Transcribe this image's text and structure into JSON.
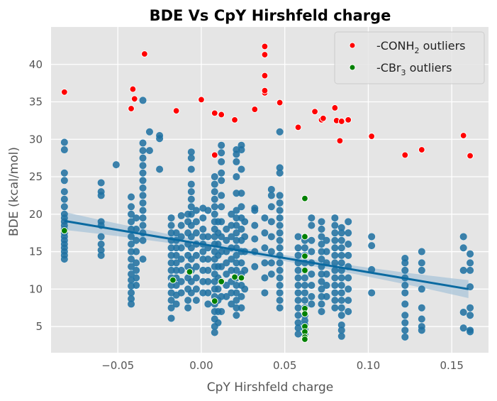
{
  "chart_data": {
    "type": "scatter",
    "title": "BDE Vs CpY Hirshfeld charge",
    "xlabel": "CpY Hirshfeld charge",
    "ylabel": "BDE (kcal/mol)",
    "xlim": [
      -0.09,
      0.172
    ],
    "ylim": [
      1.5,
      45
    ],
    "xticks": [
      -0.05,
      0.0,
      0.05,
      0.1,
      0.15
    ],
    "xtick_labels": [
      "−0.05",
      "0.00",
      "0.05",
      "0.10",
      "0.15"
    ],
    "yticks": [
      5,
      10,
      15,
      20,
      25,
      30,
      35,
      40
    ],
    "ytick_labels": [
      "5",
      "10",
      "15",
      "20",
      "25",
      "30",
      "35",
      "40"
    ],
    "grid": true,
    "legend_position": "top-right",
    "colors": {
      "main": "#1f6f9f",
      "conh2": "#ff0000",
      "cbr3": "#008000",
      "regression": "#0a6aa1",
      "band": "#a9c4d8",
      "background": "#e5e5e5"
    },
    "regression": {
      "x": [
        -0.082,
        0.16
      ],
      "y": [
        19.1,
        10.0
      ],
      "ci_halfwidth": {
        "ends": 1.2,
        "center": 0.4
      }
    },
    "series": [
      {
        "name": "",
        "columns": [
          {
            "x": -0.082,
            "y": [
              14.0,
              14.5,
              15.0,
              15.5,
              16.0,
              16.5,
              17.0,
              17.5,
              18.0,
              18.5,
              19.0,
              19.5,
              20.0,
              21.0,
              22.0,
              23.0,
              24.5,
              25.5,
              28.6,
              29.6
            ]
          },
          {
            "x": -0.06,
            "y": [
              14.5,
              15.2,
              16.0,
              17.0,
              18.5,
              19.0,
              22.5,
              23.0,
              24.2
            ]
          },
          {
            "x": -0.051,
            "y": [
              26.6
            ]
          },
          {
            "x": -0.042,
            "y": [
              8.0,
              8.7,
              9.5,
              10.4,
              11.2,
              12.0,
              13.0,
              14.0,
              15.0,
              16.0,
              17.0,
              18.0,
              19.0,
              20.0,
              21.0,
              22.3
            ]
          },
          {
            "x": -0.039,
            "y": [
              10.5,
              11.5,
              12.5,
              13.5,
              15.0,
              16.5,
              18.0,
              19.5
            ]
          },
          {
            "x": -0.035,
            "y": [
              14.0,
              16.5,
              17.5,
              18.5,
              19.5,
              20.5,
              21.5,
              22.5,
              23.5,
              24.5,
              25.5,
              26.5,
              27.5,
              28.5,
              29.5,
              35.2
            ]
          },
          {
            "x": -0.031,
            "y": [
              28.5,
              31.0
            ]
          },
          {
            "x": -0.025,
            "y": [
              26.0,
              30.1,
              30.5
            ]
          },
          {
            "x": -0.018,
            "y": [
              6.1,
              7.5,
              8.5,
              9.5,
              10.5,
              11.5,
              12.5,
              13.5,
              14.5,
              15.5,
              16.5,
              17.5,
              18.5,
              19.5
            ]
          },
          {
            "x": -0.015,
            "y": [
              8.0,
              9.2,
              10.5,
              11.5,
              12.5,
              13.5,
              14.5,
              15.5,
              16.5,
              17.5
            ]
          },
          {
            "x": -0.012,
            "y": [
              9.5,
              11.0,
              12.5,
              14.0,
              15.5,
              17.0,
              18.5,
              19.8
            ]
          },
          {
            "x": -0.008,
            "y": [
              7.5,
              8.5,
              10.0,
              11.5,
              13.0,
              14.5,
              16.0,
              17.5,
              19.0,
              20.0
            ]
          },
          {
            "x": -0.006,
            "y": [
              9.5,
              11.0,
              12.5,
              14.0,
              15.5,
              17.0,
              18.5,
              20.0,
              21.0,
              22.0,
              23.0,
              24.0,
              26.0,
              27.5,
              28.3
            ]
          },
          {
            "x": -0.003,
            "y": [
              8.5,
              10.0,
              11.5,
              13.0,
              14.5,
              16.0,
              17.5,
              19.0,
              20.5
            ]
          },
          {
            "x": 0.001,
            "y": [
              9.5,
              11.0,
              12.5,
              14.0,
              15.0,
              16.0,
              17.0,
              18.0,
              19.5,
              20.8
            ]
          },
          {
            "x": 0.004,
            "y": [
              8.0,
              9.5,
              11.0,
              12.5,
              14.0,
              15.5,
              17.0,
              20.5
            ]
          },
          {
            "x": 0.008,
            "y": [
              4.2,
              5.0,
              6.0,
              7.0,
              8.0,
              9.0,
              10.0,
              11.0,
              12.0,
              13.0,
              14.0,
              15.0,
              16.0,
              17.0,
              18.0,
              19.0,
              20.0,
              21.0,
              22.0,
              23.0,
              24.0,
              25.0
            ]
          },
          {
            "x": 0.01,
            "y": [
              5.5,
              7.0,
              8.5,
              10.0,
              11.5,
              13.0,
              14.5,
              16.0,
              17.5,
              19.0
            ]
          },
          {
            "x": 0.012,
            "y": [
              7.0,
              9.0,
              11.0,
              13.0,
              15.0,
              17.0,
              19.0,
              21.0,
              22.5,
              24.5,
              25.5,
              27.0,
              28.2,
              29.2
            ]
          },
          {
            "x": 0.015,
            "y": [
              9.0,
              10.5,
              12.0,
              13.5,
              15.0,
              16.5,
              18.0
            ]
          },
          {
            "x": 0.018,
            "y": [
              8.0,
              9.5,
              11.0,
              12.5,
              14.0,
              15.5,
              17.0,
              18.5,
              20.0
            ]
          },
          {
            "x": 0.021,
            "y": [
              6.5,
              7.5,
              8.5,
              9.5,
              10.5,
              11.5,
              12.5,
              13.5,
              14.5,
              15.5,
              16.5,
              17.5,
              18.5,
              19.5,
              20.5,
              22.8,
              25.0,
              27.0,
              28.0,
              28.6
            ]
          },
          {
            "x": 0.024,
            "y": [
              7.5,
              9.0,
              10.5,
              12.0,
              13.5,
              15.0,
              16.5,
              18.0,
              19.5,
              21.0,
              22.8,
              26.0,
              28.6,
              29.2
            ]
          },
          {
            "x": 0.026,
            "y": [
              10.0,
              12.5,
              15.0,
              17.0,
              19.0
            ]
          },
          {
            "x": 0.032,
            "y": [
              13.0,
              15.0,
              16.7,
              18.5,
              20.5,
              20.8
            ]
          },
          {
            "x": 0.038,
            "y": [
              9.5,
              11.5,
              13.5,
              15.5,
              17.5,
              19.5
            ]
          },
          {
            "x": 0.042,
            "y": [
              12.0,
              13.5,
              15.0,
              17.0,
              19.0,
              21.0,
              22.5,
              23.3
            ]
          },
          {
            "x": 0.047,
            "y": [
              7.5,
              8.5,
              9.5,
              10.5,
              11.5,
              12.5,
              13.5,
              14.5,
              15.5,
              16.5,
              17.5,
              18.5,
              19.5,
              20.5,
              21.5,
              22.5,
              25.5,
              26.2,
              31.0
            ]
          },
          {
            "x": 0.058,
            "y": [
              4.0,
              4.8,
              5.5,
              6.5,
              7.5,
              8.5,
              9.5,
              10.5,
              11.5,
              12.5,
              13.5,
              14.5,
              15.5,
              17.0
            ]
          },
          {
            "x": 0.062,
            "y": [
              4.0,
              4.6,
              5.2,
              5.8,
              6.5,
              7.5,
              8.5,
              9.5,
              10.5,
              11.5,
              12.5,
              13.5,
              14.5,
              15.5,
              16.5
            ]
          },
          {
            "x": 0.066,
            "y": [
              8.0,
              9.0,
              10.5,
              12.0,
              13.5,
              15.0,
              16.5,
              18.5,
              19.5
            ]
          },
          {
            "x": 0.072,
            "y": [
              7.0,
              8.0,
              9.0,
              10.0,
              11.0,
              12.0,
              13.0,
              14.0,
              15.0,
              16.0,
              17.0,
              18.0,
              19.0
            ]
          },
          {
            "x": 0.075,
            "y": [
              9.0,
              10.5,
              12.0,
              13.5,
              15.0,
              16.5
            ]
          },
          {
            "x": 0.08,
            "y": [
              7.5,
              8.5,
              9.5,
              10.5,
              11.5,
              12.5,
              13.5,
              14.5,
              15.5,
              16.5,
              17.5,
              18.5,
              19.5
            ]
          },
          {
            "x": 0.084,
            "y": [
              3.7,
              4.5,
              5.2,
              6.5,
              7.5,
              8.5,
              9.5,
              10.5,
              11.5,
              12.5,
              13.5,
              14.5,
              15.5,
              16.5,
              17.5,
              18.2
            ]
          },
          {
            "x": 0.088,
            "y": [
              7.0,
              8.5,
              10.0,
              11.5,
              13.0,
              14.5,
              16.0,
              17.5,
              19.0
            ]
          },
          {
            "x": 0.102,
            "y": [
              9.5,
              12.6,
              15.8,
              17.0
            ]
          },
          {
            "x": 0.122,
            "y": [
              3.6,
              4.5,
              5.5,
              6.5,
              8.0,
              9.5,
              10.5,
              11.5,
              12.5,
              13.5,
              14.1
            ]
          },
          {
            "x": 0.132,
            "y": [
              4.5,
              5.0,
              6.0,
              7.5,
              10.0,
              12.5,
              13.5,
              15.0
            ]
          },
          {
            "x": 0.157,
            "y": [
              4.8,
              6.9,
              12.5,
              15.5,
              17.0
            ]
          },
          {
            "x": 0.161,
            "y": [
              4.3,
              4.5,
              6.5,
              7.5,
              10.3,
              12.5,
              13.5,
              14.7
            ]
          }
        ]
      },
      {
        "name": "-CONH<sub>2</sub> outliers",
        "legend_main": "-CONH",
        "legend_sub": "2",
        "legend_rest": " outliers",
        "color": "#ff0000",
        "points": [
          [
            -0.082,
            36.3
          ],
          [
            -0.042,
            34.1
          ],
          [
            -0.041,
            36.7
          ],
          [
            -0.04,
            35.4
          ],
          [
            -0.034,
            41.4
          ],
          [
            -0.015,
            33.8
          ],
          [
            0.0,
            35.3
          ],
          [
            0.008,
            27.9
          ],
          [
            0.008,
            33.5
          ],
          [
            0.012,
            33.3
          ],
          [
            0.02,
            32.6
          ],
          [
            0.032,
            34.0
          ],
          [
            0.038,
            36.2
          ],
          [
            0.038,
            36.5
          ],
          [
            0.038,
            38.5
          ],
          [
            0.038,
            41.3
          ],
          [
            0.038,
            42.4
          ],
          [
            0.047,
            34.9
          ],
          [
            0.058,
            31.6
          ],
          [
            0.068,
            33.7
          ],
          [
            0.072,
            32.6
          ],
          [
            0.073,
            32.8
          ],
          [
            0.08,
            34.2
          ],
          [
            0.081,
            32.5
          ],
          [
            0.083,
            29.8
          ],
          [
            0.084,
            32.4
          ],
          [
            0.088,
            32.6
          ],
          [
            0.102,
            30.4
          ],
          [
            0.122,
            27.9
          ],
          [
            0.132,
            28.6
          ],
          [
            0.157,
            30.5
          ],
          [
            0.161,
            27.8
          ]
        ]
      },
      {
        "name": "-CBr<sub>3</sub> outliers",
        "legend_main": "-CBr",
        "legend_sub": "3",
        "legend_rest": " outliers",
        "color": "#008000",
        "points": [
          [
            -0.082,
            17.8
          ],
          [
            -0.017,
            11.2
          ],
          [
            -0.007,
            12.3
          ],
          [
            0.008,
            8.4
          ],
          [
            0.012,
            11.0
          ],
          [
            0.02,
            11.6
          ],
          [
            0.024,
            11.5
          ],
          [
            0.062,
            22.1
          ],
          [
            0.062,
            17.0
          ],
          [
            0.062,
            14.4
          ],
          [
            0.062,
            12.5
          ],
          [
            0.062,
            7.4
          ],
          [
            0.062,
            6.7
          ],
          [
            0.062,
            5.0
          ],
          [
            0.062,
            4.3
          ],
          [
            0.062,
            3.6
          ],
          [
            0.062,
            3.3
          ]
        ]
      }
    ]
  }
}
